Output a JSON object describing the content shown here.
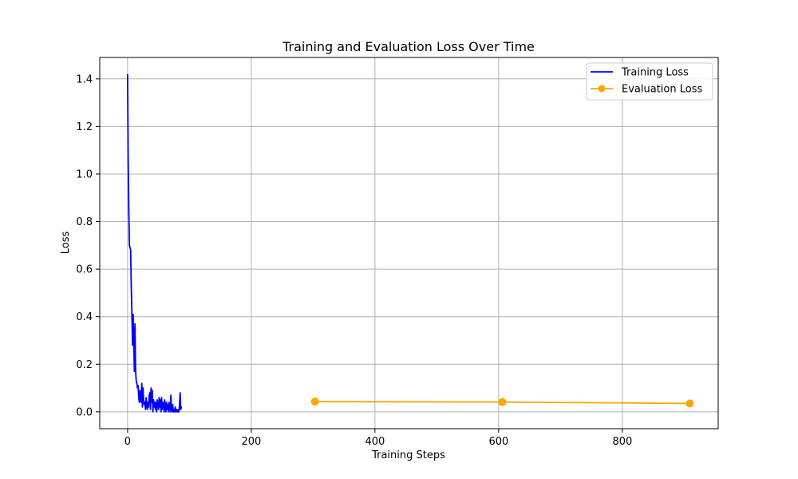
{
  "chart_data": {
    "type": "line",
    "title": "Training and Evaluation Loss Over Time",
    "xlabel": "Training Steps",
    "ylabel": "Loss",
    "xlim": [
      -45,
      955
    ],
    "ylim": [
      -0.071,
      1.49
    ],
    "xticks": [
      0,
      200,
      400,
      600,
      800
    ],
    "yticks": [
      0.0,
      0.2,
      0.4,
      0.6,
      0.8,
      1.0,
      1.2,
      1.4
    ],
    "ytick_labels": [
      "0.0",
      "0.2",
      "0.4",
      "0.6",
      "0.8",
      "1.0",
      "1.2",
      "1.4"
    ],
    "xtick_labels": [
      "0",
      "200",
      "400",
      "600",
      "800"
    ],
    "grid": true,
    "legend_position": "top-right",
    "series": [
      {
        "name": "Training Loss",
        "color": "#0000ff",
        "marker": "none",
        "x": [
          0,
          1,
          2,
          3,
          4,
          5,
          6,
          7,
          8,
          9,
          10,
          11,
          12,
          13,
          14,
          15,
          16,
          17,
          18,
          19,
          20,
          21,
          22,
          23,
          24,
          25,
          26,
          27,
          28,
          29,
          30,
          31,
          32,
          33,
          34,
          35,
          36,
          37,
          38,
          39,
          40,
          41,
          42,
          43,
          44,
          45,
          46,
          47,
          48,
          49,
          50,
          51,
          52,
          53,
          54,
          55,
          56,
          57,
          58,
          59,
          60,
          61,
          62,
          63,
          64,
          65,
          66,
          67,
          68,
          69,
          70,
          71,
          72,
          73,
          74,
          75,
          76,
          77,
          78,
          79,
          80,
          81,
          82,
          83,
          84,
          85,
          86,
          87,
          88
        ],
        "y": [
          1.42,
          1.05,
          0.85,
          0.7,
          0.69,
          0.68,
          0.52,
          0.41,
          0.28,
          0.41,
          0.3,
          0.17,
          0.37,
          0.17,
          0.13,
          0.12,
          0.1,
          0.11,
          0.06,
          0.04,
          0.09,
          0.05,
          0.04,
          0.12,
          0.02,
          0.1,
          0.05,
          0.03,
          0.04,
          0.01,
          0.06,
          0.03,
          0.01,
          0.04,
          0.02,
          0.07,
          0.08,
          0.01,
          0.1,
          0.04,
          0.09,
          0.0,
          0.05,
          0.02,
          0.04,
          0.01,
          0.04,
          0.0,
          0.05,
          0.03,
          0.01,
          0.06,
          0.02,
          0.05,
          0.0,
          0.06,
          0.01,
          0.04,
          0.03,
          0.0,
          0.05,
          0.02,
          0.0,
          0.04,
          0.01,
          0.03,
          0.0,
          0.04,
          0.02,
          0.0,
          0.07,
          0.01,
          0.0,
          0.03,
          0.0,
          0.01,
          0.0,
          0.02,
          0.0,
          0.01,
          0.0,
          0.0,
          0.01,
          0.0,
          0.03,
          0.08,
          0.01,
          0.02,
          0.02
        ]
      },
      {
        "name": "Evaluation Loss",
        "color": "#ffa500",
        "marker": "circle",
        "x": [
          303,
          606,
          909
        ],
        "y": [
          0.043,
          0.041,
          0.035
        ]
      }
    ]
  }
}
